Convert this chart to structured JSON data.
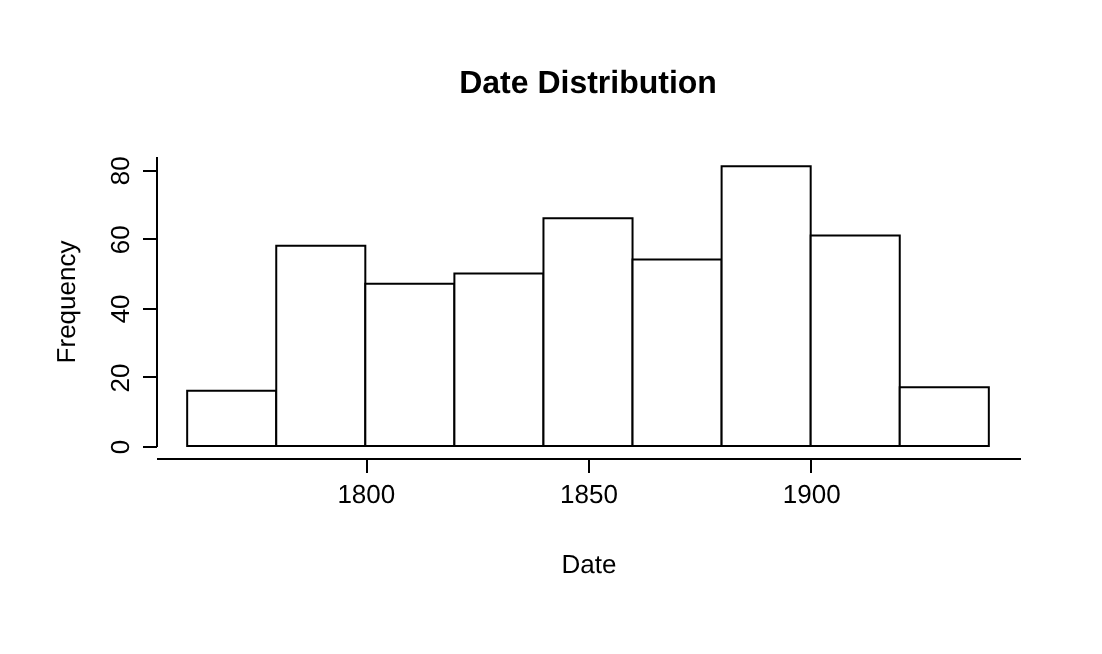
{
  "chart_data": {
    "type": "histogram",
    "title": "Date Distribution",
    "xlabel": "Date",
    "ylabel": "Frequency",
    "bins": [
      1760,
      1780,
      1800,
      1820,
      1840,
      1860,
      1880,
      1900,
      1920,
      1940
    ],
    "values": [
      16,
      58,
      47,
      50,
      66,
      54,
      81,
      61,
      17
    ],
    "color": "#ffffff",
    "xlim": [
      1753,
      1947
    ],
    "ylim": [
      0,
      84
    ],
    "xticks": [
      1800,
      1850,
      1900
    ],
    "yticks": [
      0,
      20,
      40,
      60,
      80
    ]
  }
}
